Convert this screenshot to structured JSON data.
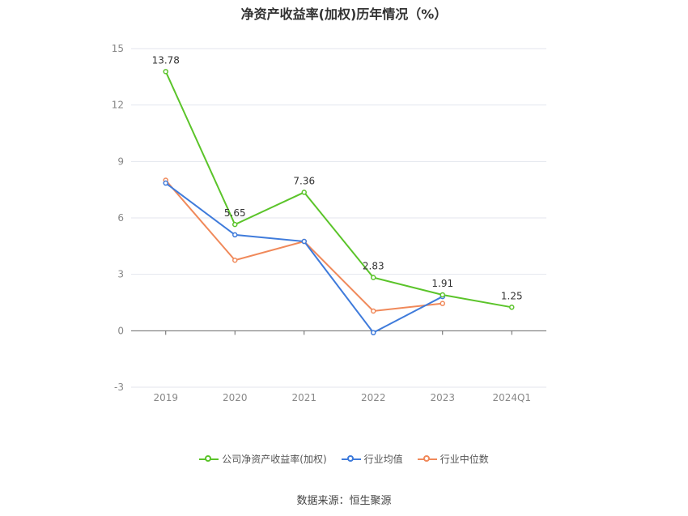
{
  "chart_data": {
    "type": "line",
    "title": "净资产收益率(加权)历年情况（%）",
    "categories": [
      "2019",
      "2020",
      "2021",
      "2022",
      "2023",
      "2024Q1"
    ],
    "ylim": [
      -3,
      15
    ],
    "yticks": [
      "15",
      "12",
      "9",
      "6",
      "3",
      "0",
      "-3"
    ],
    "grid": true,
    "legend_position": "bottom",
    "series": [
      {
        "name": "公司净资产收益率(加权)",
        "color": "#5bc42a",
        "values": [
          13.78,
          5.65,
          7.36,
          2.83,
          1.91,
          1.25
        ],
        "labels": [
          "13.78",
          "5.65",
          "7.36",
          "2.83",
          "1.91",
          "1.25"
        ]
      },
      {
        "name": "行业均值",
        "color": "#3f7bdb",
        "values": [
          7.85,
          5.1,
          4.75,
          -0.1,
          1.82,
          null
        ]
      },
      {
        "name": "行业中位数",
        "color": "#f0895a",
        "values": [
          8.0,
          3.75,
          4.75,
          1.05,
          1.45,
          null
        ]
      }
    ]
  },
  "source_text": "数据来源：恒生聚源"
}
